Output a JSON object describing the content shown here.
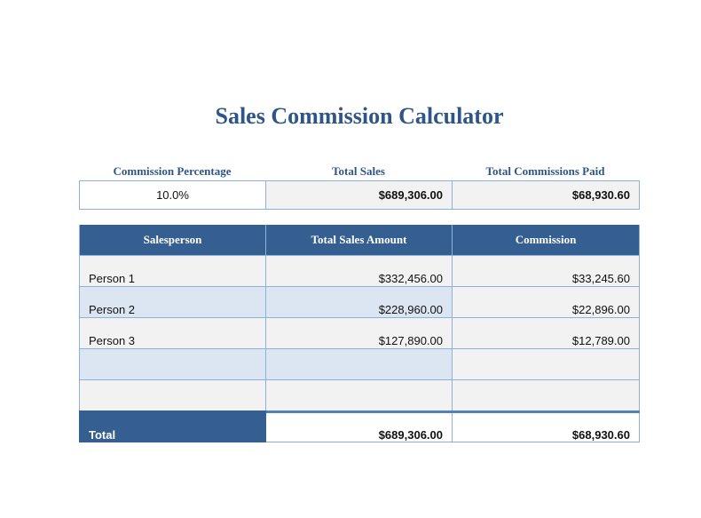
{
  "title": "Sales Commission Calculator",
  "summary": {
    "labels": [
      "Commission Percentage",
      "Total Sales",
      "Total Commissions Paid"
    ],
    "commission_percentage": "10.0%",
    "total_sales": "$689,306.00",
    "total_commissions_paid": "$68,930.60"
  },
  "table": {
    "headers": [
      "Salesperson",
      "Total Sales Amount",
      "Commission"
    ],
    "rows": [
      {
        "name": "Person 1",
        "sales": "$332,456.00",
        "commission": "$33,245.60"
      },
      {
        "name": "Person 2",
        "sales": "$228,960.00",
        "commission": "$22,896.00"
      },
      {
        "name": "Person 3",
        "sales": "$127,890.00",
        "commission": "$12,789.00"
      },
      {
        "name": "",
        "sales": "",
        "commission": ""
      },
      {
        "name": "",
        "sales": "",
        "commission": ""
      }
    ],
    "total": {
      "label": "Total",
      "sales": "$689,306.00",
      "commission": "$68,930.60"
    }
  },
  "colors": {
    "header_blue": "#365f91",
    "title_blue": "#2e5588",
    "border_blue": "#8db0dd",
    "alt_row": "#dce6f2",
    "row_gray": "#f2f2f2"
  }
}
